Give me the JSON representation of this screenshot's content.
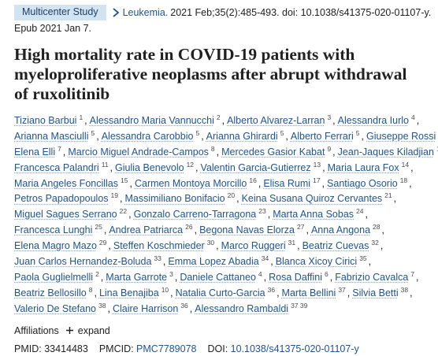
{
  "header": {
    "badge": "Multicenter Study",
    "journal": "Leukemia.",
    "citation": "2021 Feb;35(2):485-493. doi: 10.1038/s41375-020-01107-y.",
    "epub": "Epub 2021 Jan 7."
  },
  "title": "High mortality rate in COVID-19 patients with myeloproliferative neoplasms after abrupt withdrawal of ruxolitinib",
  "author_lines": [
    [
      {
        "name": "Tiziano Barbui",
        "sup": "1"
      },
      {
        "name": "Alessandro Maria Vannucchi",
        "sup": "2"
      },
      {
        "name": "Alberto Alvarez-Larran",
        "sup": "3"
      },
      {
        "name": "Alessandra Iurlo",
        "sup": "4"
      }
    ],
    [
      {
        "name": "Arianna Masciulli",
        "sup": "5"
      },
      {
        "name": "Alessandra Carobbio",
        "sup": "5"
      },
      {
        "name": "Arianna Ghirardi",
        "sup": "5"
      },
      {
        "name": "Alberto Ferrari",
        "sup": "5"
      },
      {
        "name": "Giuseppe Rossi",
        "sup": "6"
      }
    ],
    [
      {
        "name": "Elena Elli",
        "sup": "7"
      },
      {
        "name": "Marcio Miguel Andrade-Campos",
        "sup": "8"
      },
      {
        "name": "Mercedes Gasior Kabat",
        "sup": "9"
      },
      {
        "name": "Jean-Jaques Kiladjian",
        "sup": "10"
      }
    ],
    [
      {
        "name": "Francesca Palandri",
        "sup": "11"
      },
      {
        "name": "Giulia Benevolo",
        "sup": "12"
      },
      {
        "name": "Valentin Garcia-Gutierrez",
        "sup": "13"
      },
      {
        "name": "Maria Laura Fox",
        "sup": "14"
      }
    ],
    [
      {
        "name": "Maria Angeles Foncillas",
        "sup": "15"
      },
      {
        "name": "Carmen Montoya Morcillo",
        "sup": "16"
      },
      {
        "name": "Elisa Rumi",
        "sup": "17"
      },
      {
        "name": "Santiago Osorio",
        "sup": "18"
      }
    ],
    [
      {
        "name": "Petros Papadopoulos",
        "sup": "19"
      },
      {
        "name": "Massimiliano Bonifacio",
        "sup": "20"
      },
      {
        "name": "Keina Susana Quiroz Cervantes",
        "sup": "21"
      }
    ],
    [
      {
        "name": "Miguel Sagues Serrano",
        "sup": "22"
      },
      {
        "name": "Gonzalo Carreno-Tarragona",
        "sup": "23"
      },
      {
        "name": "Marta Anna Sobas",
        "sup": "24"
      }
    ],
    [
      {
        "name": "Francesca Lunghi",
        "sup": "25"
      },
      {
        "name": "Andrea Patriarca",
        "sup": "26"
      },
      {
        "name": "Begona Navas Elorza",
        "sup": "27"
      },
      {
        "name": "Anna Angona",
        "sup": "28"
      }
    ],
    [
      {
        "name": "Elena Magro Mazo",
        "sup": "29"
      },
      {
        "name": "Steffen Koschmieder",
        "sup": "30"
      },
      {
        "name": "Marco Ruggeri",
        "sup": "31"
      },
      {
        "name": "Beatriz Cuevas",
        "sup": "32"
      }
    ],
    [
      {
        "name": "Juan Carlos Hernandez-Boluda",
        "sup": "33"
      },
      {
        "name": "Emma Lopez Abadia",
        "sup": "34"
      },
      {
        "name": "Blanca Xicoy Cirici",
        "sup": "35"
      }
    ],
    [
      {
        "name": "Paola Guglielmelli",
        "sup": "2"
      },
      {
        "name": "Marta Garrote",
        "sup": "3"
      },
      {
        "name": "Daniele Cattaneo",
        "sup": "4"
      },
      {
        "name": "Rosa Daffini",
        "sup": "6"
      },
      {
        "name": "Fabrizio Cavalca",
        "sup": "7"
      }
    ],
    [
      {
        "name": "Beatriz Bellosillo",
        "sup": "8"
      },
      {
        "name": "Lina Benajiba",
        "sup": "10"
      },
      {
        "name": "Natalia Curto-Garcia",
        "sup": "36"
      },
      {
        "name": "Marta Bellini",
        "sup": "37"
      },
      {
        "name": "Silvia Betti",
        "sup": "38"
      }
    ],
    [
      {
        "name": "Valerio De Stefano",
        "sup": "38"
      },
      {
        "name": "Claire Harrison",
        "sup": "36"
      },
      {
        "name": "Alessandro Rambaldi",
        "sup": "37 39"
      }
    ]
  ],
  "affiliations": {
    "label": "Affiliations",
    "expand_label": "expand",
    "icon": "plus-icon"
  },
  "identifiers": {
    "pmid_label": "PMID:",
    "pmid": "33414483",
    "pmcid_label": "PMCID:",
    "pmcid": "PMC7789078",
    "doi_label": "DOI:",
    "doi": "10.1038/s41375-020-01107-y"
  },
  "colors": {
    "link": "#205493",
    "badge_bg": "#d2e4f2",
    "badge_text": "#1d3f66",
    "text": "#212121"
  }
}
